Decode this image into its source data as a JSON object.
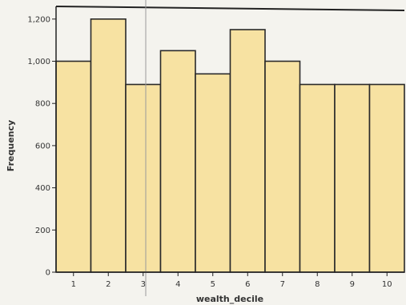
{
  "chart_data": {
    "type": "bar",
    "title": "",
    "xlabel": "wealth_decile",
    "ylabel": "Frequency",
    "categories": [
      "1",
      "2",
      "3",
      "4",
      "5",
      "6",
      "7",
      "8",
      "9",
      "10"
    ],
    "values": [
      1000,
      1200,
      890,
      1050,
      940,
      1150,
      1000,
      890,
      890,
      890
    ],
    "ylim": [
      0,
      1260
    ],
    "yticks": [
      0,
      200,
      400,
      600,
      800,
      1000,
      1200
    ],
    "ytick_labels": [
      "0",
      "200",
      "400",
      "600",
      "800",
      "1,000",
      "1,200"
    ],
    "grid": false,
    "colors": {
      "bar_fill": "#f7e2a2",
      "bar_stroke": "#2a2a2a",
      "axis": "#222222"
    }
  }
}
